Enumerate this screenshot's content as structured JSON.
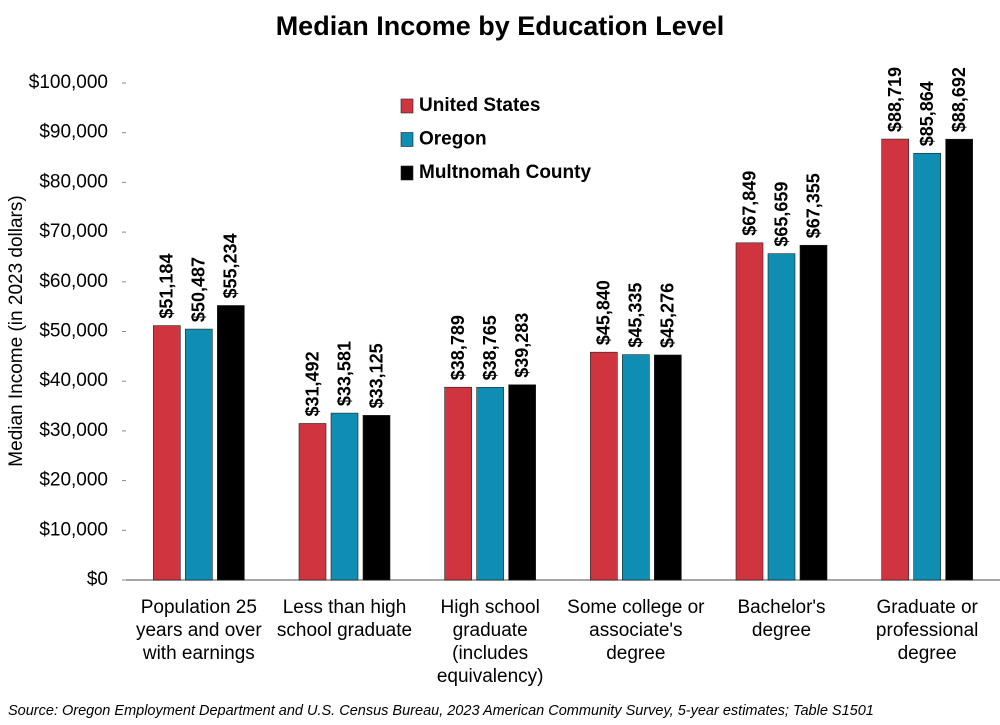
{
  "chart_data": {
    "type": "bar",
    "title": "Median Income by Education Level",
    "y_label": "Median Income (in 2023 dollars)",
    "source": "Source: Oregon Employment Department and U.S. Census Bureau, 2023 American Community Survey, 5-year estimates; Table S1501",
    "categories": [
      "Population 25 years and over with earnings",
      "Less than high school graduate",
      "High school graduate (includes equivalency)",
      "Some college or associate's degree",
      "Bachelor's degree",
      "Graduate or professional degree"
    ],
    "series": [
      {
        "name": "United States",
        "color": "#d0343f",
        "values": [
          51184,
          31492,
          38789,
          45840,
          67849,
          88719
        ],
        "value_labels": [
          "$51,184",
          "$31,492",
          "$38,789",
          "$45,840",
          "$67,849",
          "$88,719"
        ]
      },
      {
        "name": "Oregon",
        "color": "#0f8db3",
        "values": [
          50487,
          33581,
          38765,
          45335,
          65659,
          85864
        ],
        "value_labels": [
          "$50,487",
          "$33,581",
          "$38,765",
          "$45,335",
          "$65,659",
          "$85,864"
        ]
      },
      {
        "name": "Multnomah County",
        "color": "#000000",
        "values": [
          55234,
          33125,
          39283,
          45276,
          67355,
          88692
        ],
        "value_labels": [
          "$55,234",
          "$33,125",
          "$39,283",
          "$45,276",
          "$67,355",
          "$88,692"
        ]
      }
    ],
    "ylim": [
      0,
      100000
    ],
    "yticks": [
      {
        "value": 0,
        "label": "$0"
      },
      {
        "value": 10000,
        "label": "$10,000"
      },
      {
        "value": 20000,
        "label": "$20,000"
      },
      {
        "value": 30000,
        "label": "$30,000"
      },
      {
        "value": 40000,
        "label": "$40,000"
      },
      {
        "value": 50000,
        "label": "$50,000"
      },
      {
        "value": 60000,
        "label": "$60,000"
      },
      {
        "value": 70000,
        "label": "$70,000"
      },
      {
        "value": 80000,
        "label": "$80,000"
      },
      {
        "value": 90000,
        "label": "$90,000"
      },
      {
        "value": 100000,
        "label": "$100,000"
      }
    ],
    "legend": "upper-left"
  }
}
